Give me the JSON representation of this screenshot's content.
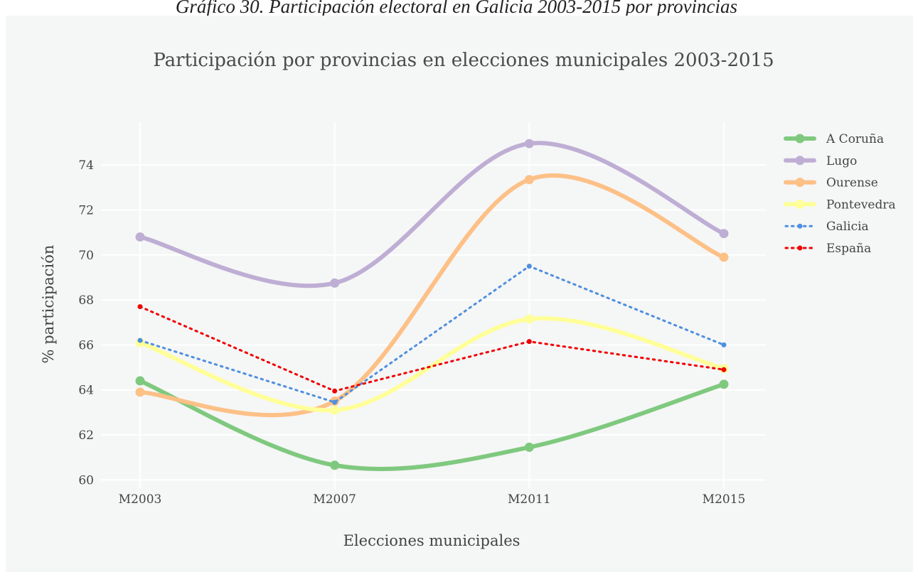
{
  "caption": "Gráfico 30. Participación electoral en Galicia 2003-2015 por provincias",
  "chart_data": {
    "type": "line",
    "title": "Participación por provincias en elecciones municipales 2003-2015",
    "xlabel": "Elecciones municipales",
    "ylabel": "% participación",
    "categories": [
      "M2003",
      "M2007",
      "M2011",
      "M2015"
    ],
    "ylim": [
      59.6,
      75.9
    ],
    "yticks": [
      60,
      62,
      64,
      66,
      68,
      70,
      72,
      74
    ],
    "grid": true,
    "legend_position": "top-right",
    "series": [
      {
        "name": "A Coruña",
        "values": [
          64.4,
          60.65,
          61.45,
          64.25
        ],
        "color": "#7fc97f",
        "style": "solid",
        "smooth": true
      },
      {
        "name": "Lugo",
        "values": [
          70.8,
          68.75,
          74.95,
          70.95
        ],
        "color": "#beaed4",
        "style": "solid",
        "smooth": true
      },
      {
        "name": "Ourense",
        "values": [
          63.9,
          63.5,
          73.35,
          69.9
        ],
        "color": "#fdc086",
        "style": "solid",
        "smooth": true
      },
      {
        "name": "Pontevedra",
        "values": [
          66.1,
          63.1,
          67.15,
          64.95
        ],
        "color": "#ffff99",
        "style": "solid",
        "smooth": true
      },
      {
        "name": "Galicia",
        "values": [
          66.2,
          63.45,
          69.5,
          66.0
        ],
        "color": "#4e8fe0",
        "style": "dot",
        "smooth": false
      },
      {
        "name": "España",
        "values": [
          67.7,
          63.95,
          66.15,
          64.9
        ],
        "color": "#f00000",
        "style": "dot",
        "smooth": false
      }
    ]
  }
}
